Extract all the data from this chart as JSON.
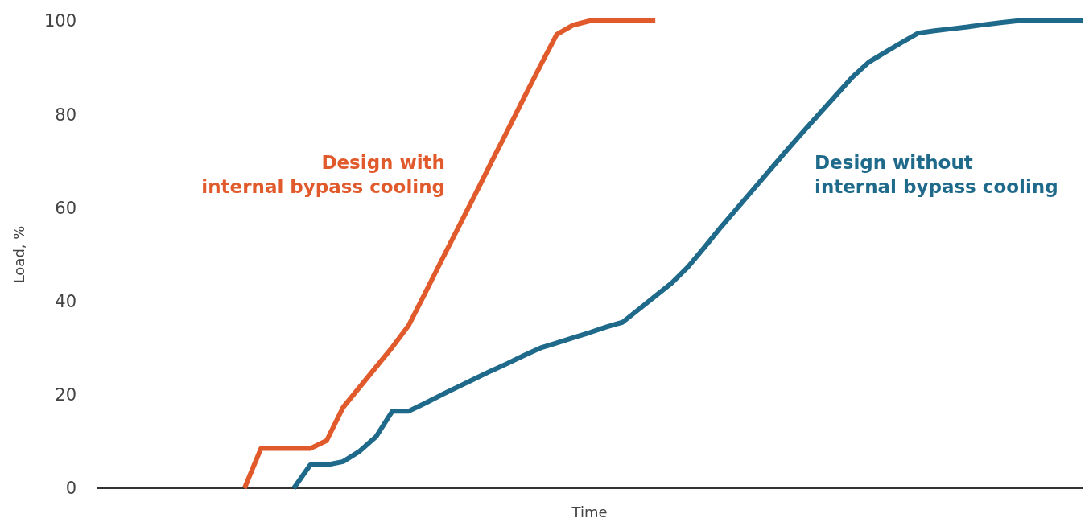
{
  "chart_data": {
    "type": "line",
    "xlabel": "Time",
    "ylabel": "Load, %",
    "categories": [
      null,
      null,
      null,
      null,
      null,
      null,
      null,
      null,
      null,
      null,
      null,
      null,
      null,
      null,
      null,
      null,
      null,
      null,
      null,
      null,
      null,
      null,
      null,
      null,
      null,
      null,
      null,
      null,
      null,
      null,
      null,
      null,
      null,
      null,
      null,
      null,
      null,
      null,
      null,
      null,
      null,
      null,
      null,
      null,
      null,
      null,
      null,
      null,
      null,
      null,
      null,
      null,
      null,
      null,
      null,
      null,
      null,
      null,
      null,
      null,
      null
    ],
    "ylim": [
      0,
      100
    ],
    "yticks": [
      0,
      20,
      40,
      60,
      80,
      100
    ],
    "tick_labels": "y",
    "grid": false,
    "marker": "none",
    "line_style": "solid",
    "series": [
      {
        "name": "Design with\ninternal bypass cooling",
        "color": "#e05a2b",
        "values": [
          null,
          null,
          null,
          null,
          null,
          null,
          null,
          null,
          null,
          0,
          8.5,
          8.5,
          8.5,
          8.5,
          10.2,
          17.3,
          21.6,
          25.9,
          30.2,
          34.9,
          41.8,
          48.8,
          55.7,
          62.6,
          69.6,
          76.5,
          83.5,
          90.4,
          97.1,
          99.1,
          100,
          100,
          100,
          100,
          100,
          null,
          null,
          null,
          null,
          null,
          null,
          null,
          null,
          null,
          null,
          null,
          null,
          null,
          null,
          null,
          null,
          null,
          null,
          null,
          null,
          null,
          null,
          null,
          null,
          null,
          null
        ]
      },
      {
        "name": "Design without\ninternal bypass cooling",
        "color": "#1f6a8a",
        "values": [
          null,
          null,
          null,
          null,
          null,
          null,
          null,
          null,
          null,
          null,
          null,
          null,
          0,
          5,
          5,
          5.7,
          7.9,
          11,
          16.5,
          16.5,
          18.2,
          20,
          21.7,
          23.4,
          25.1,
          26.7,
          28.4,
          30,
          31.1,
          32.2,
          33.3,
          34.5,
          35.5,
          38.3,
          41.1,
          43.9,
          47.4,
          51.6,
          55.9,
          60,
          64.1,
          68.2,
          72.3,
          76.3,
          80.2,
          84.1,
          88,
          91.2,
          93.3,
          95.4,
          97.4,
          97.9,
          98.3,
          98.7,
          99.2,
          99.6,
          100,
          100,
          100,
          100,
          100
        ]
      }
    ]
  }
}
